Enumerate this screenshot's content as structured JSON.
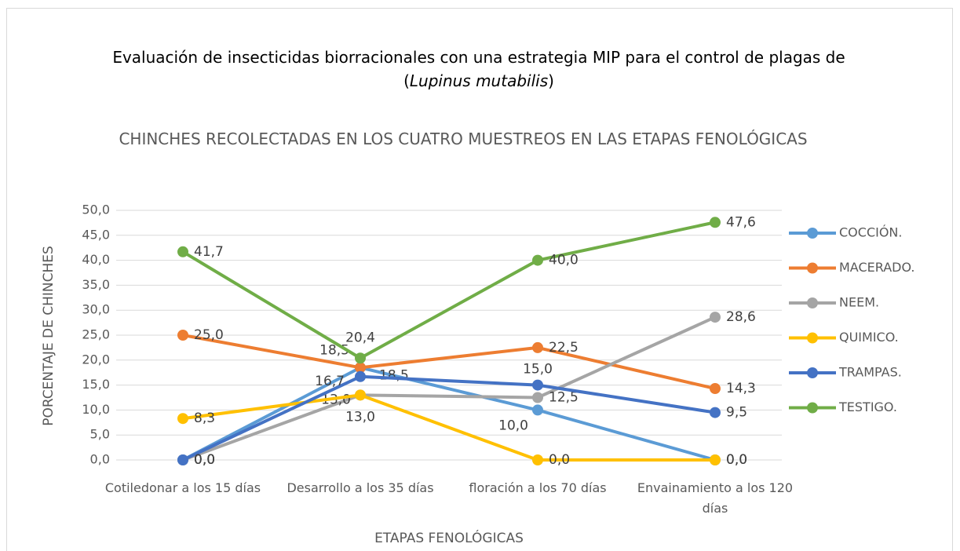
{
  "chart_data": {
    "type": "line",
    "title_parts": [
      "Evaluación de insecticidas biorracionales con una estrategia MIP para el control de plagas de (",
      "Lupinus mutabilis",
      ")"
    ],
    "subtitle": "CHINCHES RECOLECTADAS EN LOS CUATRO MUESTREOS EN LAS ETAPAS FENOLÓGICAS",
    "x_label": "ETAPAS FENOLÓGICAS",
    "y_label": "PORCENTAJE DE CHINCHES",
    "categories": [
      "Cotiledonar a los 15 días",
      "Desarrollo a los 35 días",
      "floración a los 70 días",
      "Envainamiento a los 120 días"
    ],
    "ylim": [
      0,
      50
    ],
    "yticks": [
      {
        "value": 0,
        "label": "0,0"
      },
      {
        "value": 5,
        "label": "5,0"
      },
      {
        "value": 10,
        "label": "10,0"
      },
      {
        "value": 15,
        "label": "15,0"
      },
      {
        "value": 20,
        "label": "20,0"
      },
      {
        "value": 25,
        "label": "25,0"
      },
      {
        "value": 30,
        "label": "30,0"
      },
      {
        "value": 35,
        "label": "35,0"
      },
      {
        "value": 40,
        "label": "40,0"
      },
      {
        "value": 45,
        "label": "45,0"
      },
      {
        "value": 50,
        "label": "50,0"
      }
    ],
    "grid": true,
    "legend": "right",
    "series": [
      {
        "name": "COCCIÓN.",
        "color": "#5b9bd5",
        "values": [
          0,
          18.5,
          10.0,
          0
        ],
        "value_labels": [
          "0,0",
          "18,5",
          "10,0",
          "0,0"
        ]
      },
      {
        "name": "MACERADO.",
        "color": "#ed7d31",
        "values": [
          25.0,
          18.5,
          22.5,
          14.3
        ],
        "value_labels": [
          "25,0",
          "18,5",
          "22,5",
          "14,3"
        ]
      },
      {
        "name": "NEEM.",
        "color": "#a5a5a5",
        "values": [
          0,
          13.0,
          12.5,
          28.6
        ],
        "value_labels": [
          "0,0",
          "13,0",
          "12,5",
          "28,6"
        ]
      },
      {
        "name": "QUIMICO.",
        "color": "#ffc000",
        "values": [
          8.3,
          13.0,
          0,
          0
        ],
        "value_labels": [
          "8,3",
          "13,0",
          "0,0",
          "0,0"
        ]
      },
      {
        "name": "TRAMPAS.",
        "color": "#4472c4",
        "values": [
          0,
          16.7,
          15.0,
          9.5
        ],
        "value_labels": [
          "0,0",
          "16,7",
          "15,0",
          "9,5"
        ]
      },
      {
        "name": "TESTIGO.",
        "color": "#70ad47",
        "values": [
          41.7,
          20.4,
          40.0,
          47.6
        ],
        "value_labels": [
          "41,7",
          "20,4",
          "40,0",
          "47,6"
        ]
      }
    ]
  }
}
